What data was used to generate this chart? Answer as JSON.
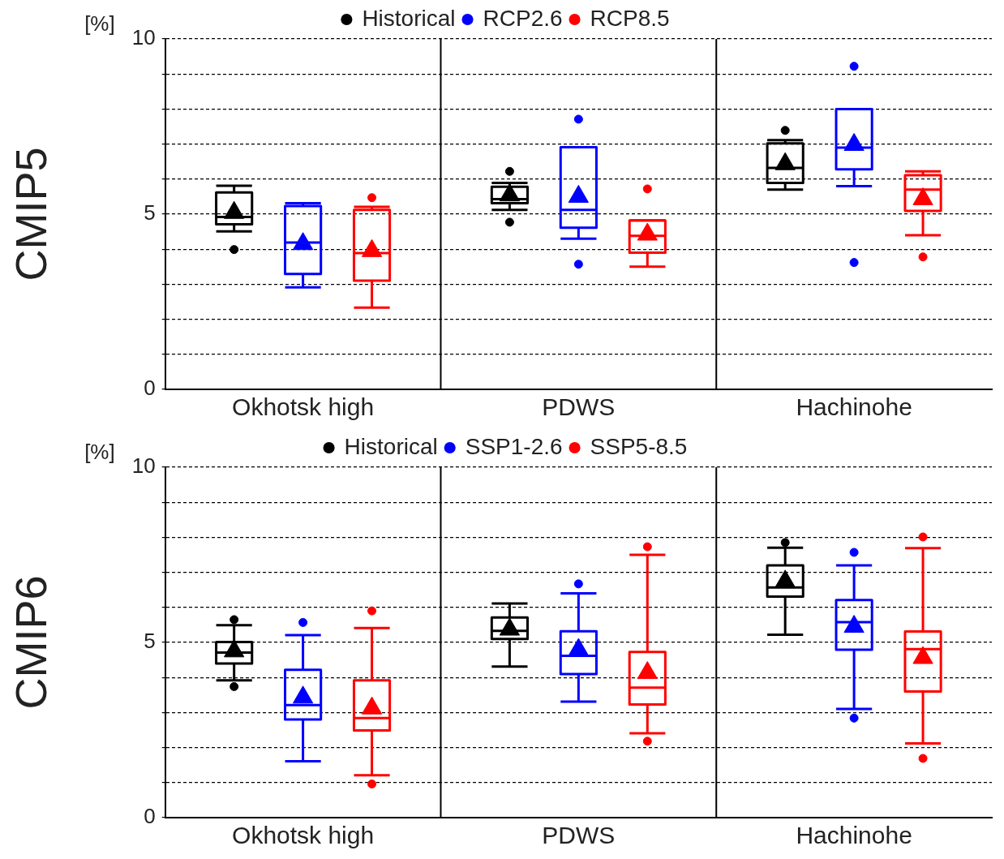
{
  "chart_data": [
    {
      "type": "box",
      "ylabel": "CMIP5",
      "annotations": [
        "[%]"
      ],
      "categories": [
        "Okhotsk high",
        "PDWS",
        "Hachinohe"
      ],
      "ylim": [
        0,
        10
      ],
      "yticks": [
        0,
        {
          "value": 1,
          "label": null
        },
        {
          "value": 2,
          "label": null
        },
        {
          "value": 3,
          "label": null
        },
        {
          "value": 4,
          "label": null
        },
        5,
        {
          "value": 6,
          "label": null
        },
        {
          "value": 7,
          "label": null
        },
        {
          "value": 8,
          "label": null
        },
        {
          "value": 9,
          "label": null
        },
        10
      ],
      "grid": "y",
      "legend": "top",
      "series": [
        {
          "name": "Historical",
          "color": "#000000",
          "boxes": [
            {
              "low": 4.51,
              "q1": 4.71,
              "median": 4.92,
              "q3": 5.62,
              "high": 5.81,
              "mean": 5.04,
              "outliers": [
                3.99
              ]
            },
            {
              "low": 5.12,
              "q1": 5.31,
              "median": 5.43,
              "q3": 5.78,
              "high": 5.89,
              "mean": 5.54,
              "outliers": [
                6.22,
                4.77
              ]
            },
            {
              "low": 5.7,
              "q1": 5.89,
              "median": 6.32,
              "q3": 7.02,
              "high": 7.11,
              "mean": 6.43,
              "outliers": [
                7.39
              ]
            }
          ]
        },
        {
          "name": "RCP2.6",
          "color": "#0000ff",
          "boxes": [
            {
              "low": 2.91,
              "q1": 3.29,
              "median": 4.19,
              "q3": 5.23,
              "high": 5.31,
              "mean": 4.15
            },
            {
              "low": 4.3,
              "q1": 4.61,
              "median": 5.12,
              "q3": 6.91,
              "high": 6.91,
              "mean": 5.5,
              "outliers": [
                7.71,
                3.57
              ]
            },
            {
              "low": 5.8,
              "q1": 6.28,
              "median": 6.9,
              "q3": 8.0,
              "high": 8.0,
              "mean": 6.98,
              "outliers": [
                9.22,
                3.62
              ]
            }
          ]
        },
        {
          "name": "RCP8.5",
          "color": "#ff0000",
          "boxes": [
            {
              "low": 2.33,
              "q1": 3.1,
              "median": 3.89,
              "q3": 5.12,
              "high": 5.21,
              "mean": 3.95,
              "outliers": [
                5.47
              ]
            },
            {
              "low": 3.5,
              "q1": 3.9,
              "median": 4.38,
              "q3": 4.82,
              "high": 4.82,
              "mean": 4.42,
              "outliers": [
                5.72
              ]
            },
            {
              "low": 4.4,
              "q1": 5.09,
              "median": 5.7,
              "q3": 6.11,
              "high": 6.22,
              "mean": 5.43,
              "outliers": [
                3.78
              ]
            }
          ]
        }
      ]
    },
    {
      "type": "box",
      "ylabel": "CMIP6",
      "annotations": [
        "[%]"
      ],
      "categories": [
        "Okhotsk high",
        "PDWS",
        "Hachinohe"
      ],
      "ylim": [
        0,
        10
      ],
      "yticks": [
        0,
        {
          "value": 1,
          "label": null
        },
        {
          "value": 2,
          "label": null
        },
        {
          "value": 3,
          "label": null
        },
        {
          "value": 4,
          "label": null
        },
        5,
        {
          "value": 6,
          "label": null
        },
        {
          "value": 7,
          "label": null
        },
        {
          "value": 8,
          "label": null
        },
        {
          "value": 9,
          "label": null
        },
        10
      ],
      "grid": "y",
      "legend": "top",
      "series": [
        {
          "name": "Historical",
          "color": "#000000",
          "boxes": [
            {
              "low": 3.92,
              "q1": 4.4,
              "median": 4.71,
              "q3": 5.01,
              "high": 5.49,
              "mean": 4.75,
              "outliers": [
                5.65,
                3.74
              ]
            },
            {
              "low": 4.31,
              "q1": 5.1,
              "median": 5.33,
              "q3": 5.71,
              "high": 6.11,
              "mean": 5.37
            },
            {
              "low": 5.22,
              "q1": 6.31,
              "median": 6.57,
              "q3": 7.2,
              "high": 7.7,
              "mean": 6.74,
              "outliers": [
                7.85
              ]
            }
          ]
        },
        {
          "name": "SSP1-2.6",
          "color": "#0000ff",
          "boxes": [
            {
              "low": 1.61,
              "q1": 2.8,
              "median": 3.21,
              "q3": 4.22,
              "high": 5.21,
              "mean": 3.43,
              "outliers": [
                5.57
              ]
            },
            {
              "low": 3.31,
              "q1": 4.1,
              "median": 4.62,
              "q3": 5.32,
              "high": 6.4,
              "mean": 4.79,
              "outliers": [
                6.67
              ]
            },
            {
              "low": 3.1,
              "q1": 4.79,
              "median": 5.58,
              "q3": 6.21,
              "high": 7.2,
              "mean": 5.45,
              "outliers": [
                7.57,
                2.84
              ]
            }
          ]
        },
        {
          "name": "SSP5-8.5",
          "color": "#ff0000",
          "boxes": [
            {
              "low": 1.21,
              "q1": 2.49,
              "median": 2.84,
              "q3": 3.92,
              "high": 5.41,
              "mean": 3.12,
              "outliers": [
                5.9,
                0.96
              ]
            },
            {
              "low": 2.41,
              "q1": 3.23,
              "median": 3.71,
              "q3": 4.73,
              "high": 7.5,
              "mean": 4.13,
              "outliers": [
                7.73,
                2.18
              ]
            },
            {
              "low": 2.12,
              "q1": 3.6,
              "median": 4.81,
              "q3": 5.31,
              "high": 7.69,
              "mean": 4.56,
              "outliers": [
                8.01,
                1.69
              ]
            }
          ]
        }
      ]
    }
  ]
}
